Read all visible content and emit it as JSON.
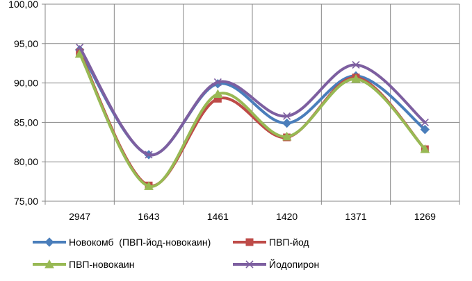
{
  "chart_data": {
    "type": "line",
    "categories": [
      "2947",
      "1643",
      "1461",
      "1420",
      "1371",
      "1269"
    ],
    "ylim": [
      75,
      100
    ],
    "ytick_step": 5,
    "ytick_labels": [
      "75,00",
      "80,00",
      "85,00",
      "90,00",
      "95,00",
      "100,00"
    ],
    "grid": true,
    "smooth": true,
    "legend_position": "bottom",
    "series": [
      {
        "name": "Новокомб  (ПВП-йод-новокаин)",
        "color": "#4a7ebb",
        "marker": "diamond",
        "values": [
          94.2,
          80.9,
          89.9,
          84.9,
          90.9,
          84.1
        ]
      },
      {
        "name": "ПВП-йод",
        "color": "#be4b48",
        "marker": "square",
        "values": [
          93.9,
          77.0,
          88.0,
          83.1,
          90.7,
          81.6
        ]
      },
      {
        "name": "ПВП-новокаин",
        "color": "#98b954",
        "marker": "triangle",
        "values": [
          93.7,
          76.9,
          88.6,
          83.2,
          90.5,
          81.6
        ]
      },
      {
        "name": "Йодопирон",
        "color": "#7d5fa0",
        "marker": "x",
        "values": [
          94.5,
          80.9,
          90.1,
          85.8,
          92.3,
          85.0
        ]
      }
    ]
  }
}
